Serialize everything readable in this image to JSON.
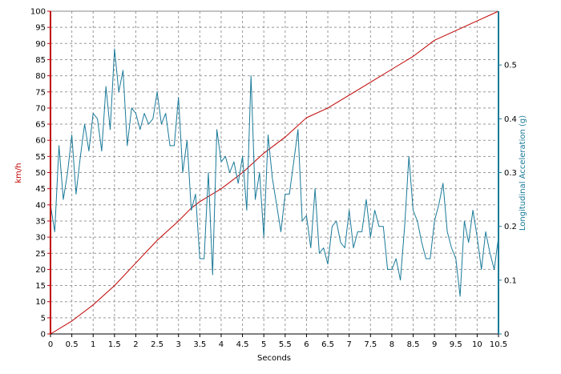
{
  "chart_data": {
    "type": "line",
    "xlabel": "Seconds",
    "ylabel_left": "km/h",
    "ylabel_right": "Longitudinal Acceleration (g)",
    "xlim": [
      0,
      10.5
    ],
    "ylim_left": [
      0,
      100
    ],
    "ylim_right": [
      0,
      0.6
    ],
    "grid": true,
    "x_ticks": [
      "0",
      "0.5",
      "1",
      "1.5",
      "2",
      "2.5",
      "3",
      "3.5",
      "4",
      "4.5",
      "5",
      "5.5",
      "6",
      "6.5",
      "7",
      "7.5",
      "8",
      "8.5",
      "9",
      "9.5",
      "10",
      "10.5"
    ],
    "y_left_ticks": [
      "0",
      "5",
      "10",
      "15",
      "20",
      "25",
      "30",
      "35",
      "40",
      "45",
      "50",
      "55",
      "60",
      "65",
      "70",
      "75",
      "80",
      "85",
      "90",
      "95",
      "100"
    ],
    "y_right_ticks": [
      "0",
      "0.1",
      "0.2",
      "0.3",
      "0.4",
      "0.5"
    ],
    "colors": {
      "speed": "#c00000",
      "accel": "#1a7a99",
      "left_axis": "#c00000",
      "right_axis": "#1a7a99",
      "grid": "#999999"
    },
    "series": [
      {
        "key": "speed",
        "axis": "left",
        "x": [
          0,
          0.5,
          1,
          1.5,
          2,
          2.5,
          3,
          3.3,
          3.5,
          4,
          4.5,
          5,
          5.5,
          6,
          6.5,
          7,
          7.5,
          8,
          8.5,
          9,
          9.5,
          10,
          10.5
        ],
        "values": [
          0,
          4,
          9,
          15,
          22,
          29,
          35,
          39,
          41,
          45,
          50,
          56,
          61,
          67,
          70,
          74,
          78,
          82,
          86,
          91,
          94,
          97,
          100
        ]
      },
      {
        "key": "accel",
        "axis": "right",
        "x": [
          0,
          0.1,
          0.2,
          0.3,
          0.4,
          0.5,
          0.6,
          0.7,
          0.8,
          0.9,
          1.0,
          1.1,
          1.2,
          1.3,
          1.4,
          1.5,
          1.6,
          1.7,
          1.8,
          1.9,
          2.0,
          2.1,
          2.2,
          2.3,
          2.4,
          2.5,
          2.6,
          2.7,
          2.8,
          2.9,
          3.0,
          3.1,
          3.2,
          3.3,
          3.4,
          3.5,
          3.6,
          3.7,
          3.8,
          3.9,
          4.0,
          4.1,
          4.2,
          4.3,
          4.4,
          4.5,
          4.6,
          4.7,
          4.8,
          4.9,
          5.0,
          5.1,
          5.2,
          5.3,
          5.4,
          5.5,
          5.6,
          5.7,
          5.8,
          5.9,
          6.0,
          6.1,
          6.2,
          6.3,
          6.4,
          6.5,
          6.6,
          6.7,
          6.8,
          6.9,
          7.0,
          7.1,
          7.2,
          7.3,
          7.4,
          7.5,
          7.6,
          7.7,
          7.8,
          7.9,
          8.0,
          8.1,
          8.2,
          8.3,
          8.4,
          8.5,
          8.6,
          8.7,
          8.8,
          8.9,
          9.0,
          9.1,
          9.2,
          9.3,
          9.4,
          9.5,
          9.6,
          9.7,
          9.8,
          9.9,
          10.0,
          10.1,
          10.2,
          10.3,
          10.4,
          10.5
        ],
        "values": [
          0.24,
          0.19,
          0.35,
          0.25,
          0.3,
          0.37,
          0.26,
          0.33,
          0.39,
          0.34,
          0.41,
          0.4,
          0.34,
          0.46,
          0.38,
          0.53,
          0.45,
          0.49,
          0.35,
          0.42,
          0.41,
          0.38,
          0.41,
          0.39,
          0.4,
          0.45,
          0.39,
          0.41,
          0.35,
          0.35,
          0.44,
          0.3,
          0.36,
          0.23,
          0.26,
          0.14,
          0.14,
          0.3,
          0.11,
          0.38,
          0.32,
          0.33,
          0.3,
          0.32,
          0.28,
          0.33,
          0.23,
          0.48,
          0.25,
          0.3,
          0.18,
          0.37,
          0.29,
          0.24,
          0.19,
          0.26,
          0.26,
          0.32,
          0.38,
          0.21,
          0.22,
          0.16,
          0.27,
          0.15,
          0.16,
          0.13,
          0.2,
          0.21,
          0.17,
          0.16,
          0.23,
          0.16,
          0.19,
          0.19,
          0.25,
          0.18,
          0.23,
          0.2,
          0.2,
          0.12,
          0.12,
          0.14,
          0.1,
          0.2,
          0.33,
          0.23,
          0.21,
          0.17,
          0.14,
          0.14,
          0.21,
          0.24,
          0.28,
          0.19,
          0.16,
          0.14,
          0.07,
          0.21,
          0.17,
          0.23,
          0.18,
          0.12,
          0.19,
          0.15,
          0.12,
          0.18
        ]
      }
    ]
  }
}
